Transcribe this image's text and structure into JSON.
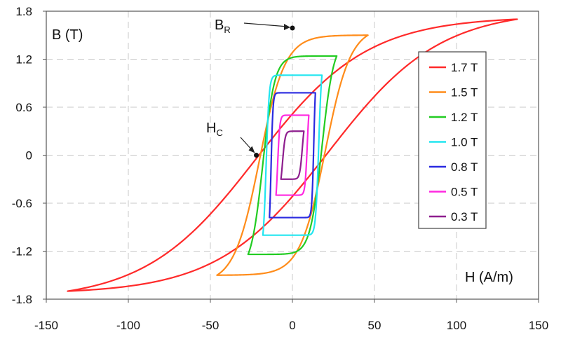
{
  "chart_data": {
    "type": "line",
    "title": "",
    "xlabel": "H (A/m)",
    "ylabel": "B (T)",
    "xlim": [
      -150,
      150
    ],
    "ylim": [
      -1.8,
      1.8
    ],
    "x_ticks": [
      "-150",
      "-100",
      "-50",
      "0",
      "50",
      "100",
      "150"
    ],
    "y_ticks": [
      "1.8",
      "1.2",
      "0.6",
      "0",
      "-0.6",
      "-1.2",
      "-1.8"
    ],
    "grid": true,
    "legend_position": "right",
    "annotations": [
      {
        "main": "B",
        "sub": "R",
        "point": [
          0,
          1.59
        ]
      },
      {
        "main": "H",
        "sub": "C",
        "point": [
          -22,
          0
        ]
      }
    ],
    "series": [
      {
        "name": "1.7 T",
        "color": "#ff2a2a",
        "peak_H": 137,
        "peak_B": 1.7,
        "coercive_H": 22,
        "remanent_B": 1.59
      },
      {
        "name": "1.5 T",
        "color": "#ff8c1a",
        "peak_H": 46,
        "peak_B": 1.5,
        "coercive_H": 20,
        "remanent_B": 1.4
      },
      {
        "name": "1.2 T",
        "color": "#22cc22",
        "peak_H": 27,
        "peak_B": 1.24,
        "coercive_H": 18,
        "remanent_B": 1.05
      },
      {
        "name": "1.0 T",
        "color": "#22e5f0",
        "peak_H": 18,
        "peak_B": 1.0,
        "coercive_H": 16,
        "remanent_B": 0.8
      },
      {
        "name": "0.8 T",
        "color": "#2a2ae0",
        "peak_H": 14,
        "peak_B": 0.78,
        "coercive_H": 13,
        "remanent_B": 0.55
      },
      {
        "name": "0.5 T",
        "color": "#ff28e0",
        "peak_H": 10,
        "peak_B": 0.5,
        "coercive_H": 9,
        "remanent_B": 0.32
      },
      {
        "name": "0.3 T",
        "color": "#8e1e8e",
        "peak_H": 7,
        "peak_B": 0.3,
        "coercive_H": 6,
        "remanent_B": 0.17
      }
    ]
  }
}
